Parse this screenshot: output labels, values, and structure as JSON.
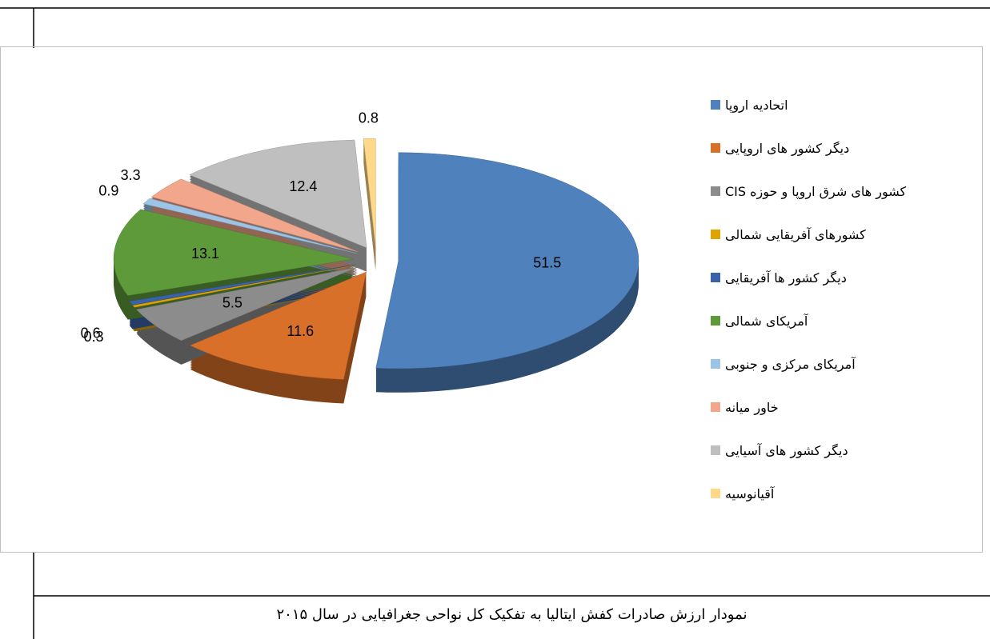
{
  "chart_data": {
    "type": "pie",
    "categories": [
      "اتحادیه اروپا",
      "دیگر کشور های اروپایی",
      "کشور های شرق اروپا و حوزه CIS",
      "کشورهای آفریقایی شمالی",
      "دیگر کشور ها آفریقایی",
      "آمریکای شمالی",
      "آمریکای مرکزی و جنوبی",
      "خاور میانه",
      "دیگر کشور های آسیایی",
      "آقیانوسیه"
    ],
    "values": [
      51.5,
      11.6,
      5.5,
      0.3,
      0.6,
      13.1,
      0.9,
      3.3,
      12.4,
      0.8
    ],
    "colors": [
      "#4f81bd",
      "#d8702a",
      "#8c8c8c",
      "#e0a400",
      "#3a62a8",
      "#5e9a3a",
      "#9dc3e6",
      "#f2a68c",
      "#bfbfbf",
      "#ffd88a"
    ],
    "legend": "right"
  },
  "caption": "نمودار ارزش صادرات کفش ایتالیا به تفکیک کل نواحی جغرافیایی در سال ۲۰۱۵"
}
